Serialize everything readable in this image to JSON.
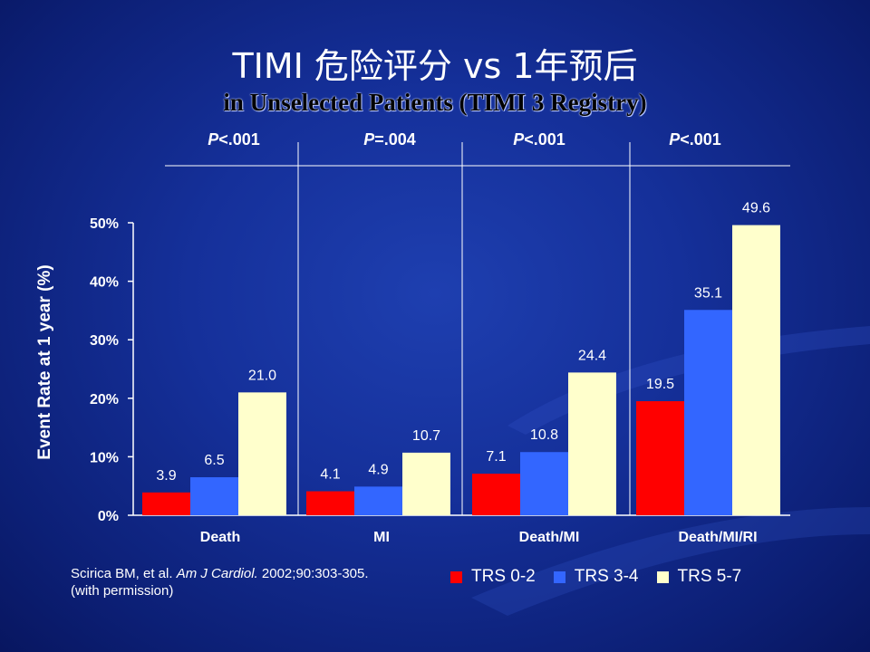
{
  "title": "TIMI 危险评分 vs 1年预后",
  "subtitle": "in Unselected Patients (TIMI 3 Registry)",
  "citation": {
    "authors": "Scirica BM, et al.",
    "journal": "Am J Cardiol.",
    "ref": "2002;90:303-305.",
    "permission": "(with permission)"
  },
  "colors": {
    "TRS 0-2": "#ff0000",
    "TRS 3-4": "#3366ff",
    "TRS 5-7": "#ffffcc"
  },
  "chart_data": {
    "type": "bar",
    "title": "",
    "xlabel": "",
    "ylabel": "Event Rate at 1 year (%)",
    "ylim": [
      0,
      50
    ],
    "yticks": [
      "0%",
      "10%",
      "20%",
      "30%",
      "40%",
      "50%"
    ],
    "categories": [
      "Death",
      "MI",
      "Death/MI",
      "Death/MI/RI"
    ],
    "p_values": [
      {
        "prefix": "P",
        "rest": "<.001"
      },
      {
        "prefix": "P",
        "rest": "=.004"
      },
      {
        "prefix": "P",
        "rest": "<.001"
      },
      {
        "prefix": "P",
        "rest": "<.001"
      }
    ],
    "series": [
      {
        "name": "TRS 0-2",
        "values": [
          3.9,
          4.1,
          7.1,
          19.5
        ]
      },
      {
        "name": "TRS 3-4",
        "values": [
          6.5,
          4.9,
          10.8,
          35.1
        ]
      },
      {
        "name": "TRS 5-7",
        "values": [
          21.0,
          10.7,
          24.4,
          49.6
        ]
      }
    ],
    "legend_position": "bottom-right",
    "grid": false
  }
}
